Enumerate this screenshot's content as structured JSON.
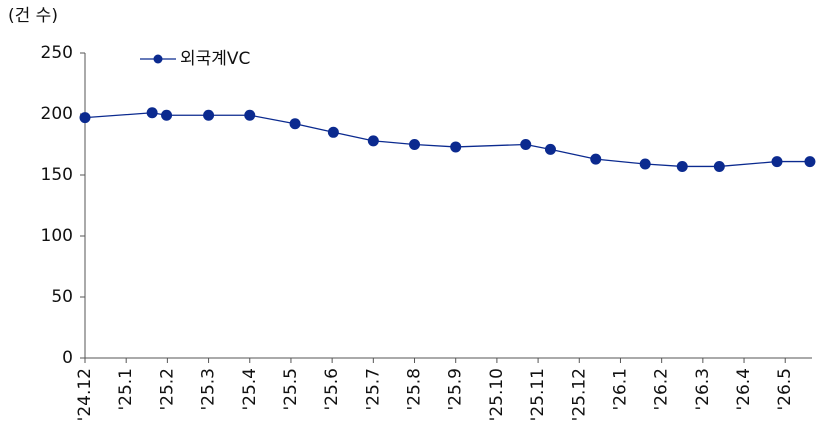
{
  "chart_data": {
    "type": "line",
    "y_label": "(건 수)",
    "series": [
      {
        "name": "외국계VC",
        "color": "#0b2a8f",
        "x": [
          0,
          1.63,
          1.98,
          3,
          4,
          5.1,
          6.03,
          7,
          8,
          9,
          10.7,
          11.3,
          12.4,
          13.6,
          14.5,
          15.4,
          16.8,
          17.6
        ],
        "values": [
          197,
          201,
          199,
          199,
          199,
          192,
          185,
          178,
          175,
          173,
          175,
          171,
          163,
          159,
          157,
          157,
          161,
          161
        ]
      }
    ],
    "xlim": [
      0,
      17.65
    ],
    "xticks": [
      {
        "value": 0,
        "label": "'24.12"
      },
      {
        "value": 1,
        "label": "'25.1"
      },
      {
        "value": 2,
        "label": "'25.2"
      },
      {
        "value": 3,
        "label": "'25.3"
      },
      {
        "value": 4,
        "label": "'25.4"
      },
      {
        "value": 5,
        "label": "'25.5"
      },
      {
        "value": 6,
        "label": "'25.6"
      },
      {
        "value": 7,
        "label": "'25.7"
      },
      {
        "value": 8,
        "label": "'25.8"
      },
      {
        "value": 9,
        "label": "'25.9"
      },
      {
        "value": 10,
        "label": "'25.10"
      },
      {
        "value": 11,
        "label": "'25.11"
      },
      {
        "value": 12,
        "label": "'25.12"
      },
      {
        "value": 13,
        "label": "'26.1"
      },
      {
        "value": 14,
        "label": "'26.2"
      },
      {
        "value": 15,
        "label": "'26.3"
      },
      {
        "value": 16,
        "label": "'26.4"
      },
      {
        "value": 17,
        "label": "'26.5"
      }
    ],
    "ylim": [
      0,
      250
    ],
    "yticks": [
      0,
      50,
      100,
      150,
      200,
      250
    ],
    "legend": "top-left"
  }
}
